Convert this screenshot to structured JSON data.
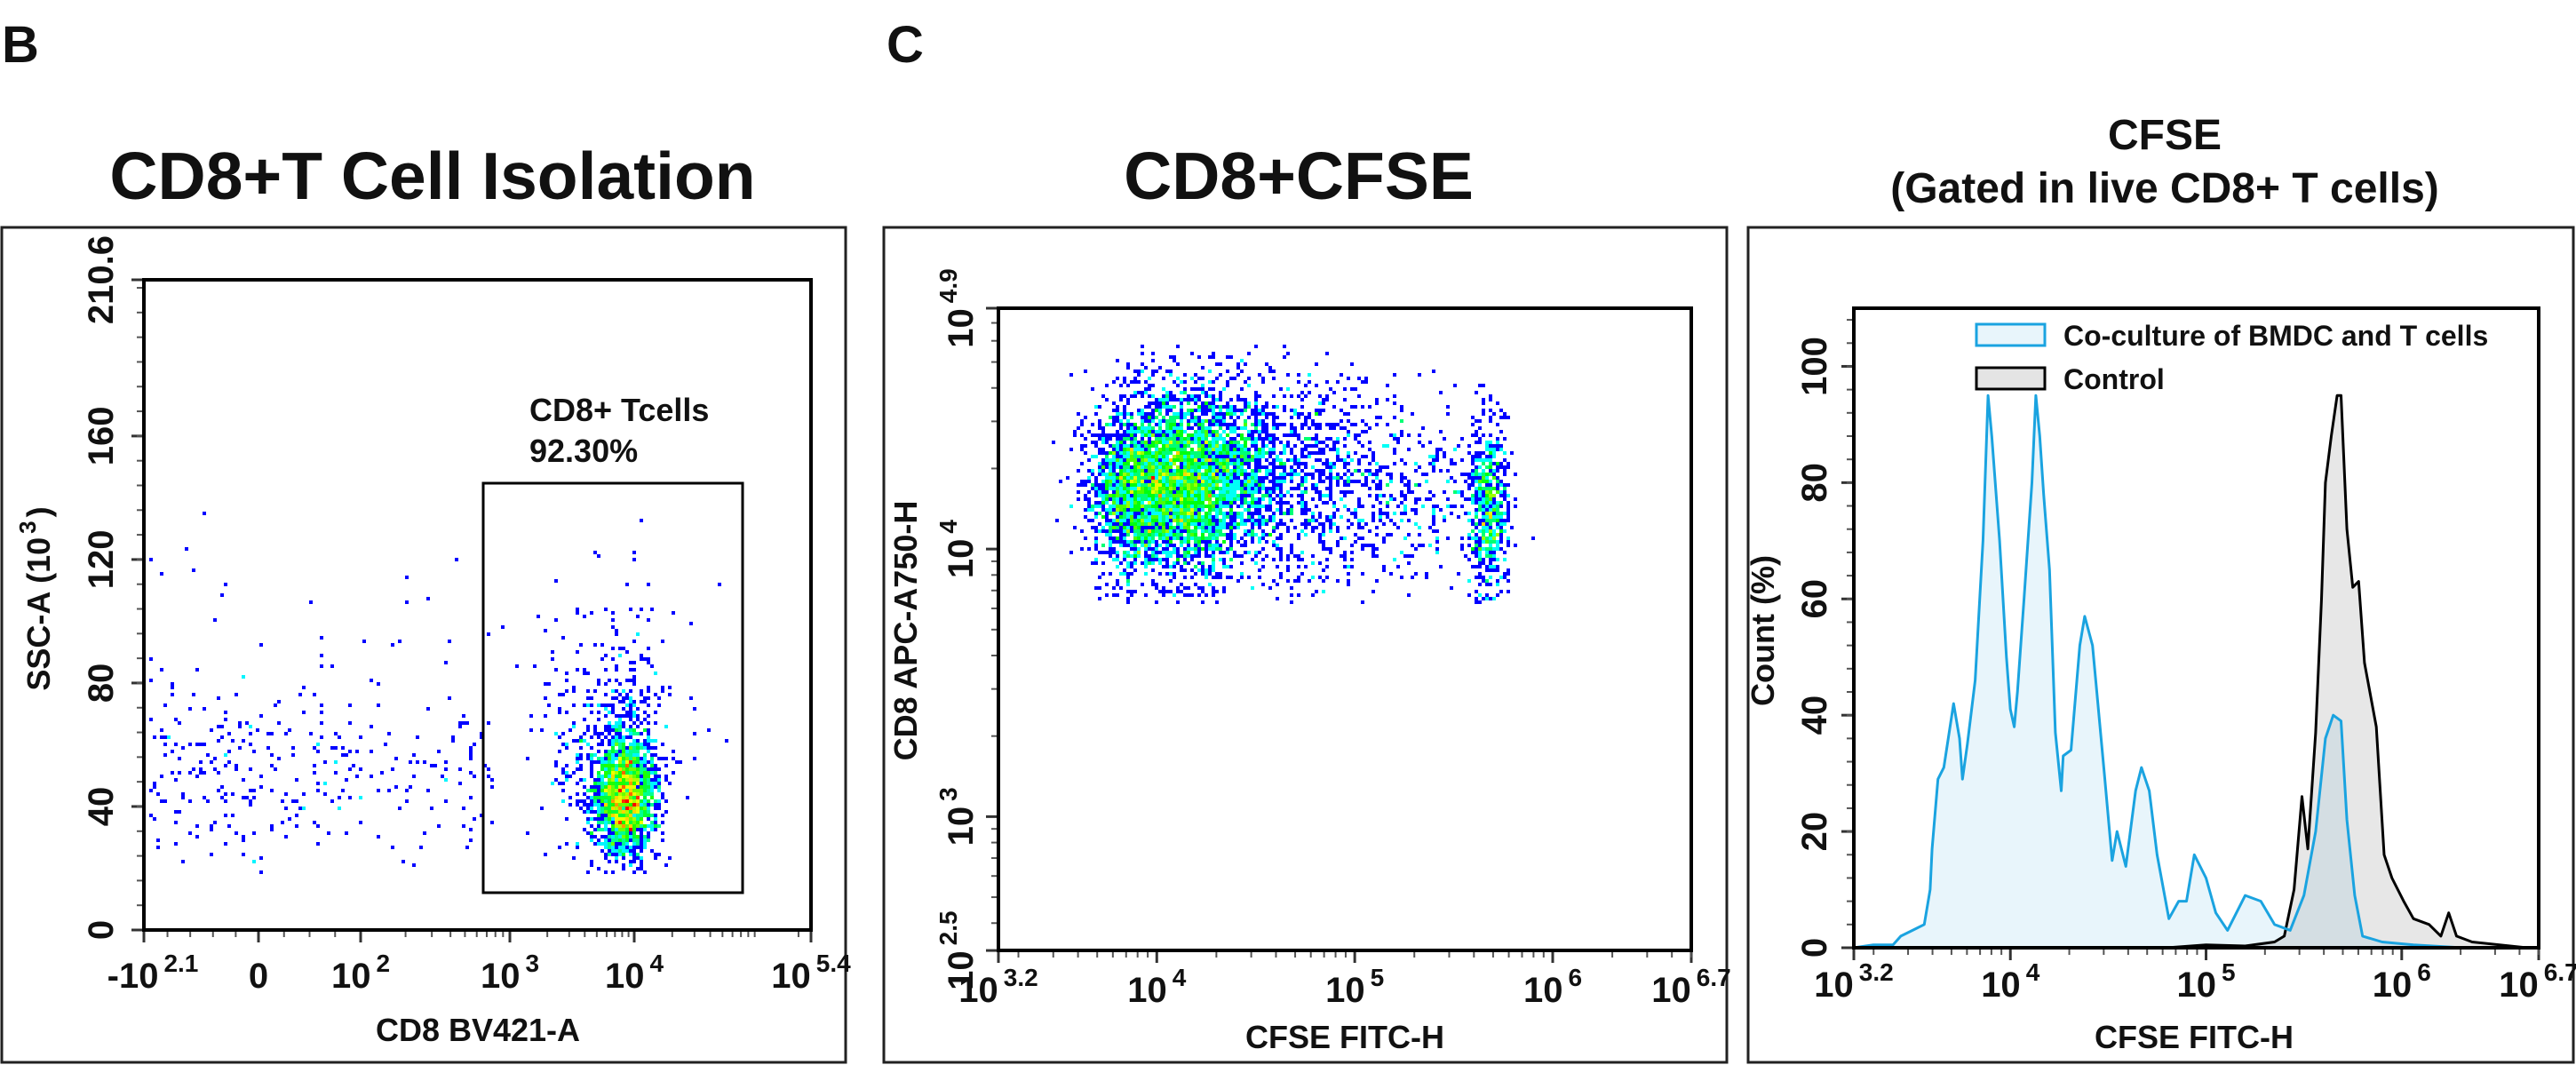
{
  "panel_labels": {
    "b": "B",
    "c": "C"
  },
  "colors": {
    "density_colormap": [
      "#0000ff",
      "#00ffff",
      "#00ff00",
      "#ffff00",
      "#ff0000"
    ],
    "coculture_line": "#1aa3e0",
    "coculture_fill": "#e8f5fb",
    "control_line": "#000000",
    "control_fill": "#e4e4e4"
  },
  "chart_data": [
    {
      "type": "scatter",
      "title": "CD8+T Cell Isolation",
      "xlabel": "CD8 BV421-A",
      "ylabel": {
        "text": "SSC-A  (10",
        "sup": "3",
        "close": ")"
      },
      "x_scale": "biexponential",
      "y_scale": "linear",
      "xlim": [
        -125.9,
        251189
      ],
      "ylim": [
        0,
        210.6
      ],
      "x_ticks": [
        {
          "value": -125.9,
          "label": "-10",
          "exp": "2.1"
        },
        {
          "value": 0,
          "label": "0",
          "exp": ""
        },
        {
          "value": 100,
          "label": "10",
          "exp": "2"
        },
        {
          "value": 1000,
          "label": "10",
          "exp": "3"
        },
        {
          "value": 10000,
          "label": "10",
          "exp": "4"
        },
        {
          "value": 251189,
          "label": "10",
          "exp": "5.4"
        }
      ],
      "y_ticks": [
        {
          "value": 0,
          "label": "0"
        },
        {
          "value": 40,
          "label": "40"
        },
        {
          "value": 80,
          "label": "80"
        },
        {
          "value": 120,
          "label": "120"
        },
        {
          "value": 160,
          "label": "160"
        },
        {
          "value": 210.6,
          "label": "210.6"
        }
      ],
      "gate": {
        "name": "CD8+ Tcells",
        "percent": "92.30%",
        "x_range": [
          660,
          72000
        ],
        "y_range": [
          12,
          144.5
        ]
      },
      "populations": [
        {
          "x_center": 8500,
          "x_sd_dex": 0.12,
          "y_center": 42,
          "y_sd": 9,
          "count": 2000
        },
        {
          "x_center": 6000,
          "x_sd_dex": 0.28,
          "y_center": 55,
          "y_sd": 17,
          "count": 450
        },
        {
          "x_range": [
            -120,
            800
          ],
          "y_center": 50,
          "y_sd": 16,
          "count": 330
        }
      ]
    },
    {
      "type": "scatter",
      "title": "CD8+CFSE",
      "xlabel": "CFSE FITC-H",
      "ylabel": {
        "text": "CD8  APC-A750-H"
      },
      "x_scale": "log",
      "y_scale": "log",
      "xlim": [
        1585,
        5011872
      ],
      "ylim": [
        316,
        79433
      ],
      "x_ticks": [
        {
          "value": 1585,
          "label": "10",
          "exp": "3.2"
        },
        {
          "value": 10000,
          "label": "10",
          "exp": "4"
        },
        {
          "value": 100000,
          "label": "10",
          "exp": "5"
        },
        {
          "value": 1000000,
          "label": "10",
          "exp": "6"
        },
        {
          "value": 5011872,
          "label": "10",
          "exp": "6.7"
        }
      ],
      "y_ticks": [
        {
          "value": 316,
          "label": "10",
          "exp": "2.5"
        },
        {
          "value": 1000,
          "label": "10",
          "exp": "3"
        },
        {
          "value": 10000,
          "label": "10",
          "exp": "4"
        },
        {
          "value": 79433,
          "label": "10",
          "exp": "4.9"
        }
      ],
      "y_min_event": 6300,
      "y_max_event": 58000,
      "populations": [
        {
          "x_center": 8300,
          "x_sd_dex": 0.13,
          "y_center": 17000,
          "y_sd_dex": 0.17,
          "count": 2300
        },
        {
          "x_center": 15500,
          "x_sd_dex": 0.11,
          "y_center": 18000,
          "y_sd_dex": 0.18,
          "count": 1900
        },
        {
          "x_center": 27000,
          "x_sd_dex": 0.12,
          "y_center": 19000,
          "y_sd_dex": 0.18,
          "count": 900
        },
        {
          "x_center": 65000,
          "x_sd_dex": 0.2,
          "y_center": 18000,
          "y_sd_dex": 0.2,
          "count": 650
        },
        {
          "x_center": 190000,
          "x_sd_dex": 0.2,
          "y_center": 16000,
          "y_sd_dex": 0.18,
          "count": 300
        },
        {
          "x_center": 470000,
          "x_sd_dex": 0.05,
          "y_center": 14000,
          "y_sd_dex": 0.15,
          "count": 650
        }
      ]
    },
    {
      "type": "area",
      "title": "CFSE",
      "subtitle": "(Gated in live CD8+ T cells)",
      "xlabel": "CFSE FITC-H",
      "ylabel": "Count  (%)",
      "x_scale": "log",
      "xlim": [
        1585,
        5011872
      ],
      "ylim": [
        0,
        110
      ],
      "x_ticks": [
        {
          "value": 1585,
          "label": "10",
          "exp": "3.2"
        },
        {
          "value": 10000,
          "label": "10",
          "exp": "4"
        },
        {
          "value": 100000,
          "label": "10",
          "exp": "5"
        },
        {
          "value": 1000000,
          "label": "10",
          "exp": "6"
        },
        {
          "value": 5011872,
          "label": "10",
          "exp": "6.7"
        }
      ],
      "y_ticks": [
        {
          "value": 0,
          "label": "0"
        },
        {
          "value": 20,
          "label": "20"
        },
        {
          "value": 40,
          "label": "40"
        },
        {
          "value": 60,
          "label": "60"
        },
        {
          "value": 80,
          "label": "80"
        },
        {
          "value": 100,
          "label": "100"
        }
      ],
      "legend_position": "top-right",
      "series": [
        {
          "name": "Co-culture of BMDC and T cells",
          "log10_x": [
            3.2,
            3.3,
            3.4,
            3.44,
            3.5,
            3.56,
            3.59,
            3.6,
            3.63,
            3.66,
            3.71,
            3.74,
            3.755,
            3.78,
            3.82,
            3.86,
            3.886,
            3.905,
            3.945,
            3.98,
            4.0,
            4.02,
            4.036,
            4.07,
            4.11,
            4.13,
            4.15,
            4.17,
            4.2,
            4.23,
            4.26,
            4.27,
            4.31,
            4.355,
            4.38,
            4.42,
            4.48,
            4.52,
            4.545,
            4.59,
            4.64,
            4.67,
            4.71,
            4.75,
            4.81,
            4.86,
            4.9,
            4.94,
            5.0,
            5.05,
            5.11,
            5.2,
            5.28,
            5.35,
            5.43,
            5.5,
            5.56,
            5.61,
            5.65,
            5.69,
            5.72,
            5.76,
            5.8,
            5.9,
            6.06,
            6.31,
            6.7
          ],
          "y": [
            0,
            0.5,
            0.5,
            2,
            3,
            4,
            10,
            17,
            29,
            31,
            42,
            36,
            29,
            35,
            46,
            70,
            95,
            88,
            70,
            50,
            41,
            38,
            44,
            60,
            80,
            95,
            88,
            78,
            65,
            37,
            27,
            33,
            34,
            52,
            57,
            52,
            30,
            15,
            20,
            14,
            27,
            31,
            27,
            16,
            5,
            8,
            8,
            16,
            12,
            6,
            3,
            9,
            8,
            4,
            3,
            9,
            20,
            36,
            40,
            39,
            22,
            9,
            2,
            1,
            0.5,
            0,
            0
          ]
        },
        {
          "name": "Control",
          "log10_x": [
            3.2,
            4.8,
            5.0,
            5.2,
            5.35,
            5.4,
            5.45,
            5.49,
            5.52,
            5.56,
            5.59,
            5.61,
            5.64,
            5.67,
            5.69,
            5.72,
            5.75,
            5.78,
            5.81,
            5.87,
            5.91,
            5.95,
            6.01,
            6.06,
            6.14,
            6.2,
            6.24,
            6.28,
            6.36,
            6.5,
            6.64,
            6.7
          ],
          "y": [
            0,
            0,
            0.5,
            0.3,
            1,
            2,
            10,
            26,
            17,
            37,
            60,
            80,
            88,
            95,
            95,
            72,
            62,
            63,
            49,
            38,
            16,
            12,
            8,
            5,
            4,
            2,
            6,
            2,
            1,
            0.5,
            0,
            0
          ]
        }
      ]
    }
  ]
}
